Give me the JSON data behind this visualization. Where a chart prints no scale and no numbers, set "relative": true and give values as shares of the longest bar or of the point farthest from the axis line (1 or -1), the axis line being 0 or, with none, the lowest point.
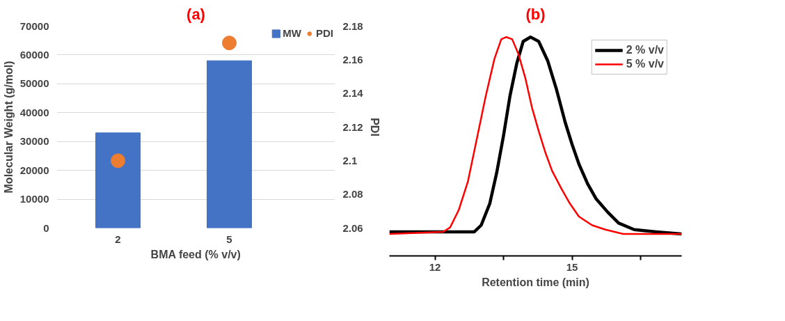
{
  "chart_data": [
    {
      "type": "bar",
      "title": "(a)",
      "xlabel": "BMA feed (% v/v)",
      "ylabel": "Molecular Weight (g/mol)",
      "y2label": "PDI",
      "categories": [
        "2",
        "5"
      ],
      "series": [
        {
          "name": "MW",
          "type": "bar",
          "color": "#4472c4",
          "values": [
            33000,
            58000
          ]
        },
        {
          "name": "PDI",
          "type": "scatter",
          "axis": "y2",
          "color": "#ed7d31",
          "marker": "circle",
          "values": [
            2.1,
            2.17
          ]
        }
      ],
      "ylim": [
        0,
        70000
      ],
      "yticks": [
        0,
        10000,
        20000,
        30000,
        40000,
        50000,
        60000,
        70000
      ],
      "y2lim": [
        2.06,
        2.18
      ],
      "y2ticks": [
        2.06,
        2.08,
        2.1,
        2.12,
        2.14,
        2.16,
        2.18
      ],
      "grid": "y",
      "legend": "top right"
    },
    {
      "type": "line",
      "title": "(b)",
      "xlabel": "Retention time (min)",
      "relative": true,
      "tick_labels": "x",
      "xlim": [
        11.0,
        17.4
      ],
      "xticks": [
        12,
        {
          "value": 13.5,
          "label": null
        },
        15,
        {
          "value": 16.5,
          "label": null
        }
      ],
      "series": [
        {
          "name": "2 % v/v",
          "color": "#000000",
          "x": [
            11.0,
            11.99,
            12.86,
            13.01,
            13.2,
            13.35,
            13.5,
            13.64,
            13.79,
            13.93,
            14.09,
            14.27,
            14.47,
            14.66,
            14.85,
            15.0,
            15.15,
            15.34,
            15.53,
            15.78,
            16.02,
            16.36,
            16.84,
            17.4
          ],
          "values": [
            0.11,
            0.11,
            0.11,
            0.14,
            0.24,
            0.38,
            0.55,
            0.73,
            0.88,
            0.98,
            1.0,
            0.98,
            0.89,
            0.76,
            0.61,
            0.51,
            0.42,
            0.33,
            0.26,
            0.2,
            0.15,
            0.12,
            0.11,
            0.1
          ]
        },
        {
          "name": "5 % v/v",
          "color": "#ff0000",
          "x": [
            11.0,
            12.18,
            12.33,
            12.52,
            12.72,
            12.91,
            13.11,
            13.3,
            13.45,
            13.56,
            13.69,
            13.83,
            13.98,
            14.12,
            14.27,
            14.42,
            14.56,
            14.76,
            14.95,
            15.15,
            15.44,
            15.73,
            16.12,
            16.6,
            17.4
          ],
          "values": [
            0.1,
            0.11,
            0.13,
            0.21,
            0.34,
            0.53,
            0.73,
            0.9,
            0.99,
            1.0,
            0.99,
            0.92,
            0.81,
            0.68,
            0.57,
            0.47,
            0.39,
            0.31,
            0.24,
            0.18,
            0.14,
            0.12,
            0.1,
            0.1,
            0.1
          ]
        }
      ],
      "grid": false,
      "legend": "top right"
    }
  ]
}
